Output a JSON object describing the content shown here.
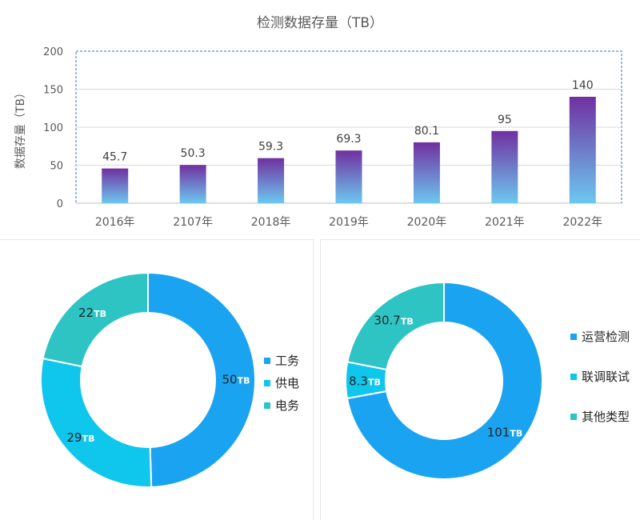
{
  "chart_data": [
    {
      "type": "bar",
      "title": "检测数据存量（TB）",
      "ylabel": "数据存量（TB）",
      "xlabel": "",
      "categories": [
        "2016年",
        "2107年",
        "2018年",
        "2019年",
        "2020年",
        "2021年",
        "2022年"
      ],
      "values": [
        45.7,
        50.3,
        59.3,
        69.3,
        80.1,
        95,
        140
      ],
      "value_labels": [
        "45.7",
        "50.3",
        "59.3",
        "69.3",
        "80.1",
        "95",
        "140"
      ],
      "ylim": [
        0,
        200
      ],
      "yticks": [
        "0",
        "50",
        "100",
        "150",
        "200"
      ],
      "ytick_values": [
        0,
        50,
        100,
        150,
        200
      ],
      "grid": true,
      "bar_gradient": [
        "#7030a0",
        "#6cc8f0"
      ]
    },
    {
      "type": "pie",
      "donut": true,
      "legend_position": "right",
      "slices": [
        {
          "label": "工务",
          "value": 50,
          "value_text": "50",
          "unit": "TB",
          "color": "#1aa3f0"
        },
        {
          "label": "供电",
          "value": 29,
          "value_text": "29",
          "unit": "TB",
          "color": "#0fc6ec"
        },
        {
          "label": "电务",
          "value": 22,
          "value_text": "22",
          "unit": "TB",
          "color": "#2ec4c4"
        }
      ]
    },
    {
      "type": "pie",
      "donut": true,
      "legend_position": "right",
      "slices": [
        {
          "label": "运营检测",
          "value": 101,
          "value_text": "101",
          "unit": "TB",
          "color": "#1aa3f0"
        },
        {
          "label": "联调联试",
          "value": 8.3,
          "value_text": "8.3",
          "unit": "TB",
          "color": "#0fc6ec"
        },
        {
          "label": "其他类型",
          "value": 30.7,
          "value_text": "30.7",
          "unit": "TB",
          "color": "#2ec4c4"
        }
      ]
    }
  ]
}
